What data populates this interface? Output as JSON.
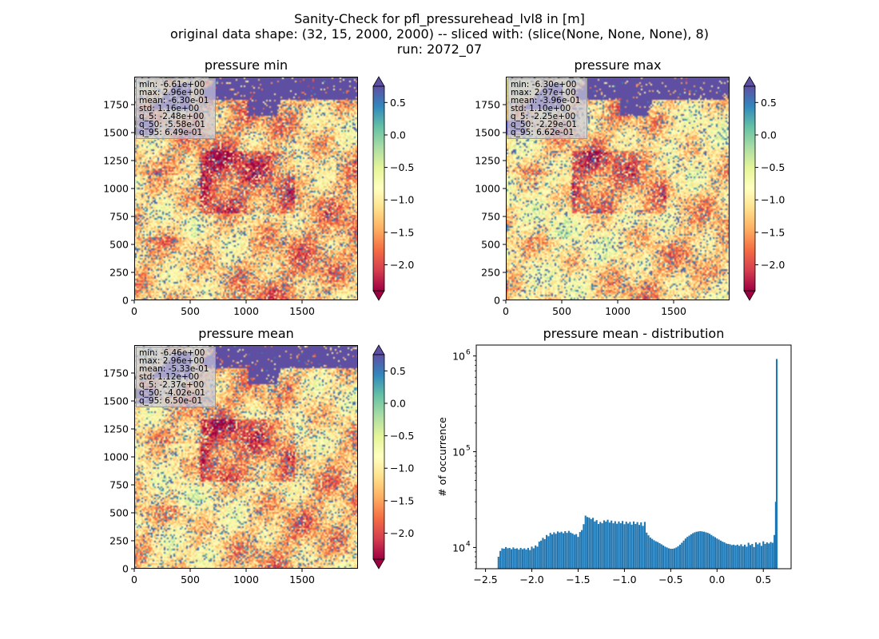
{
  "title": {
    "line1": "Sanity-Check for pfl_pressurehead_lvl8 in [m]",
    "line2": "original data shape: (32, 15, 2000, 2000) -- sliced with: (slice(None, None, None), 8)",
    "line3": "run: 2072_07"
  },
  "colors": {
    "histogram_bar": "#1f77b4",
    "ocean": "#5e4fa2",
    "colormap": "Spectral"
  },
  "chart_data": [
    {
      "type": "heatmap",
      "title": "pressure min",
      "x_ticks": [
        "0",
        "500",
        "1000",
        "1500"
      ],
      "y_ticks": [
        "0",
        "250",
        "500",
        "750",
        "1000",
        "1250",
        "1500",
        "1750"
      ],
      "xlim": [
        0,
        2000
      ],
      "ylim": [
        0,
        2000
      ],
      "colorbar_ticks": [
        "0.5",
        "0.0",
        "−0.5",
        "−1.0",
        "−1.5",
        "−2.0"
      ],
      "colorbar_range": [
        -2.4,
        0.75
      ],
      "stats": [
        "min: -6.61e+00",
        "max: 2.96e+00",
        "mean: -6.30e-01",
        "std: 1.16e+00",
        "q_5: -2.48e+00",
        "q_50: -5.58e-01",
        "q_95: 6.49e-01"
      ]
    },
    {
      "type": "heatmap",
      "title": "pressure max",
      "x_ticks": [
        "0",
        "500",
        "1000",
        "1500"
      ],
      "y_ticks": [
        "0",
        "250",
        "500",
        "750",
        "1000",
        "1250",
        "1500",
        "1750"
      ],
      "xlim": [
        0,
        2000
      ],
      "ylim": [
        0,
        2000
      ],
      "colorbar_ticks": [
        "0.5",
        "0.0",
        "−0.5",
        "−1.0",
        "−1.5",
        "−2.0"
      ],
      "colorbar_range": [
        -2.4,
        0.75
      ],
      "stats": [
        "min: -6.30e+00",
        "max: 2.97e+00",
        "mean: -3.96e-01",
        "std: 1.10e+00",
        "q_5: -2.25e+00",
        "q_50: -2.29e-01",
        "q_95: 6.62e-01"
      ]
    },
    {
      "type": "heatmap",
      "title": "pressure mean",
      "x_ticks": [
        "0",
        "500",
        "1000",
        "1500"
      ],
      "y_ticks": [
        "0",
        "250",
        "500",
        "750",
        "1000",
        "1250",
        "1500",
        "1750"
      ],
      "xlim": [
        0,
        2000
      ],
      "ylim": [
        0,
        2000
      ],
      "colorbar_ticks": [
        "0.5",
        "0.0",
        "−0.5",
        "−1.0",
        "−1.5",
        "−2.0"
      ],
      "colorbar_range": [
        -2.4,
        0.75
      ],
      "stats": [
        "min: -6.46e+00",
        "max: 2.96e+00",
        "mean: -5.33e-01",
        "std: 1.12e+00",
        "q_5: -2.37e+00",
        "q_50: -4.02e-01",
        "q_95: 6.50e-01"
      ]
    },
    {
      "type": "bar",
      "title": "pressure mean - distribution",
      "xlabel": "",
      "ylabel": "# of occurrence",
      "y_scale": "log",
      "xlim": [
        -2.6,
        0.8
      ],
      "ylim": [
        6000,
        1300000
      ],
      "x_ticks": [
        "−2.5",
        "−2.0",
        "−1.5",
        "−1.0",
        "−0.5",
        "0.0",
        "0.5"
      ],
      "x_tick_values": [
        -2.5,
        -2.0,
        -1.5,
        -1.0,
        -0.5,
        0.0,
        0.5
      ],
      "y_ticks": [
        {
          "label": "10",
          "exp": "4",
          "value": 10000
        },
        {
          "label": "10",
          "exp": "5",
          "value": 100000
        },
        {
          "label": "10",
          "exp": "6",
          "value": 1000000
        }
      ],
      "bin_width": 0.0183,
      "bins": [
        [
          -2.36,
          8000
        ],
        [
          -2.34,
          9200
        ],
        [
          -2.32,
          9800
        ],
        [
          -2.3,
          9700
        ],
        [
          -2.28,
          10100
        ],
        [
          -2.26,
          9800
        ],
        [
          -2.24,
          9900
        ],
        [
          -2.22,
          9600
        ],
        [
          -2.2,
          10000
        ],
        [
          -2.18,
          9700
        ],
        [
          -2.16,
          9800
        ],
        [
          -2.14,
          9500
        ],
        [
          -2.12,
          9900
        ],
        [
          -2.1,
          9600
        ],
        [
          -2.08,
          9800
        ],
        [
          -2.06,
          9500
        ],
        [
          -2.04,
          9900
        ],
        [
          -2.02,
          9400
        ],
        [
          -2.0,
          10200
        ],
        [
          -1.98,
          9800
        ],
        [
          -1.96,
          10500
        ],
        [
          -1.94,
          10200
        ],
        [
          -1.92,
          11500
        ],
        [
          -1.9,
          11800
        ],
        [
          -1.88,
          12600
        ],
        [
          -1.86,
          12200
        ],
        [
          -1.84,
          13500
        ],
        [
          -1.82,
          13100
        ],
        [
          -1.8,
          14200
        ],
        [
          -1.78,
          13700
        ],
        [
          -1.76,
          14400
        ],
        [
          -1.74,
          13900
        ],
        [
          -1.72,
          14700
        ],
        [
          -1.7,
          14300
        ],
        [
          -1.68,
          14600
        ],
        [
          -1.66,
          14100
        ],
        [
          -1.64,
          14800
        ],
        [
          -1.62,
          14200
        ],
        [
          -1.6,
          14900
        ],
        [
          -1.58,
          14300
        ],
        [
          -1.56,
          14000
        ],
        [
          -1.54,
          13600
        ],
        [
          -1.52,
          13800
        ],
        [
          -1.5,
          12900
        ],
        [
          -1.48,
          14500
        ],
        [
          -1.46,
          15200
        ],
        [
          -1.44,
          17500
        ],
        [
          -1.42,
          21500
        ],
        [
          -1.4,
          20800
        ],
        [
          -1.38,
          20500
        ],
        [
          -1.36,
          19800
        ],
        [
          -1.34,
          20400
        ],
        [
          -1.32,
          18700
        ],
        [
          -1.3,
          19300
        ],
        [
          -1.28,
          17600
        ],
        [
          -1.26,
          18500
        ],
        [
          -1.24,
          17900
        ],
        [
          -1.22,
          19200
        ],
        [
          -1.2,
          18600
        ],
        [
          -1.18,
          19500
        ],
        [
          -1.16,
          18200
        ],
        [
          -1.14,
          19100
        ],
        [
          -1.12,
          17900
        ],
        [
          -1.1,
          18800
        ],
        [
          -1.08,
          17700
        ],
        [
          -1.06,
          18700
        ],
        [
          -1.04,
          17900
        ],
        [
          -1.02,
          18900
        ],
        [
          -1.0,
          17500
        ],
        [
          -0.98,
          18600
        ],
        [
          -0.96,
          17800
        ],
        [
          -0.94,
          18500
        ],
        [
          -0.92,
          17300
        ],
        [
          -0.9,
          18700
        ],
        [
          -0.88,
          17600
        ],
        [
          -0.86,
          18400
        ],
        [
          -0.84,
          17200
        ],
        [
          -0.82,
          18300
        ],
        [
          -0.8,
          16800
        ],
        [
          -0.78,
          18500
        ],
        [
          -0.76,
          14300
        ],
        [
          -0.74,
          13400
        ],
        [
          -0.72,
          12700
        ],
        [
          -0.7,
          12300
        ],
        [
          -0.68,
          11900
        ],
        [
          -0.66,
          11600
        ],
        [
          -0.64,
          11400
        ],
        [
          -0.62,
          11100
        ],
        [
          -0.6,
          10800
        ],
        [
          -0.58,
          10500
        ],
        [
          -0.56,
          10200
        ],
        [
          -0.54,
          10000
        ],
        [
          -0.52,
          9800
        ],
        [
          -0.5,
          9700
        ],
        [
          -0.48,
          9700
        ],
        [
          -0.46,
          9800
        ],
        [
          -0.44,
          10000
        ],
        [
          -0.42,
          10300
        ],
        [
          -0.4,
          10700
        ],
        [
          -0.38,
          11200
        ],
        [
          -0.36,
          11800
        ],
        [
          -0.34,
          12400
        ],
        [
          -0.32,
          12900
        ],
        [
          -0.3,
          13300
        ],
        [
          -0.28,
          13700
        ],
        [
          -0.26,
          14100
        ],
        [
          -0.24,
          14400
        ],
        [
          -0.22,
          14600
        ],
        [
          -0.2,
          14700
        ],
        [
          -0.18,
          14800
        ],
        [
          -0.16,
          14700
        ],
        [
          -0.14,
          14600
        ],
        [
          -0.12,
          14400
        ],
        [
          -0.1,
          14200
        ],
        [
          -0.08,
          13900
        ],
        [
          -0.06,
          13500
        ],
        [
          -0.04,
          13100
        ],
        [
          -0.02,
          12800
        ],
        [
          0.0,
          12400
        ],
        [
          0.02,
          12100
        ],
        [
          0.04,
          11800
        ],
        [
          0.06,
          11500
        ],
        [
          0.08,
          11300
        ],
        [
          0.1,
          11000
        ],
        [
          0.12,
          10900
        ],
        [
          0.14,
          10800
        ],
        [
          0.16,
          10600
        ],
        [
          0.18,
          10700
        ],
        [
          0.2,
          10500
        ],
        [
          0.22,
          10700
        ],
        [
          0.24,
          10400
        ],
        [
          0.26,
          10800
        ],
        [
          0.28,
          10300
        ],
        [
          0.3,
          10700
        ],
        [
          0.32,
          10200
        ],
        [
          0.34,
          11200
        ],
        [
          0.36,
          10600
        ],
        [
          0.38,
          10900
        ],
        [
          0.4,
          10100
        ],
        [
          0.42,
          11300
        ],
        [
          0.44,
          10800
        ],
        [
          0.46,
          11200
        ],
        [
          0.48,
          10400
        ],
        [
          0.5,
          11600
        ],
        [
          0.52,
          10900
        ],
        [
          0.54,
          11300
        ],
        [
          0.56,
          11000
        ],
        [
          0.58,
          11400
        ],
        [
          0.6,
          11200
        ],
        [
          0.62,
          13500
        ],
        [
          0.635,
          30000
        ],
        [
          0.645,
          930000
        ]
      ]
    }
  ]
}
